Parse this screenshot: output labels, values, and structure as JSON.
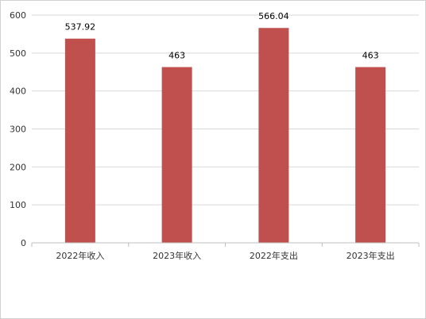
{
  "chart_data": {
    "type": "bar",
    "categories": [
      "2022年收入",
      "2023年收入",
      "2022年支出",
      "2023年支出"
    ],
    "values": [
      537.92,
      463,
      566.04,
      463
    ],
    "value_labels": [
      "537.92",
      "463",
      "566.04",
      "463"
    ],
    "y_ticks": [
      "0",
      "100",
      "200",
      "300",
      "400",
      "500",
      "600"
    ],
    "ylim": [
      0,
      600
    ],
    "grid": true,
    "bar_color": "#c0504d"
  }
}
